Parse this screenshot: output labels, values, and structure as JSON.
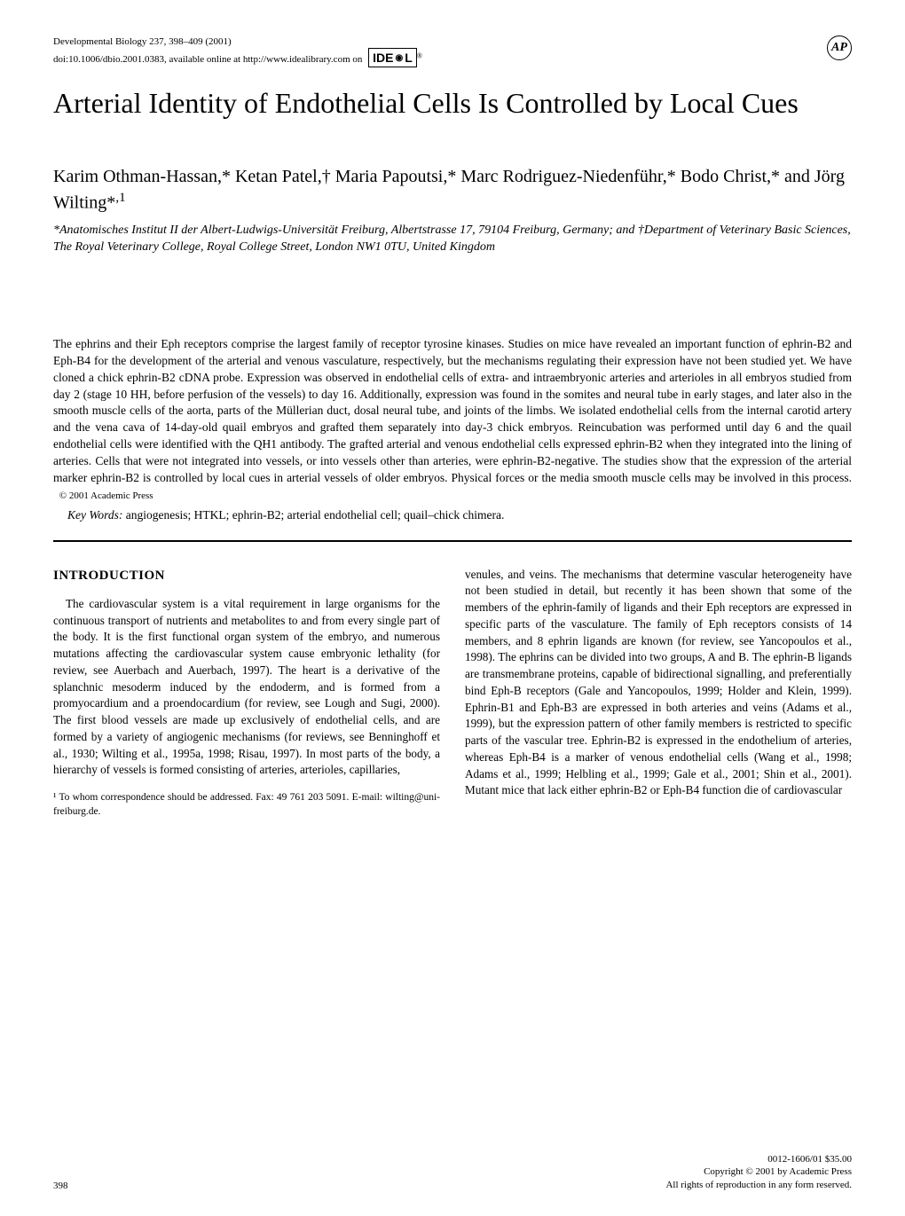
{
  "header": {
    "journal_line": "Developmental Biology 237, 398–409 (2001)",
    "doi_line": "doi:10.1006/dbio.2001.0383, available online at http://www.idealibrary.com on",
    "ideal_logo_text": "IDE",
    "ideal_logo_suffix": "L",
    "ideal_superscript": "®",
    "ap_logo_text": "AP"
  },
  "title": "Arterial Identity of Endothelial Cells Is Controlled by Local Cues",
  "authors_html": "Karim Othman-Hassan,* Ketan Patel,† Maria Papoutsi,* Marc Rodriguez-Niedenführ,* Bodo Christ,* and Jörg Wilting*<sup>,1</sup>",
  "affiliations": "*Anatomisches Institut II der Albert-Ludwigs-Universität Freiburg, Albertstrasse 17, 79104 Freiburg, Germany; and †Department of Veterinary Basic Sciences, The Royal Veterinary College, Royal College Street, London NW1 0TU, United Kingdom",
  "abstract": "The ephrins and their Eph receptors comprise the largest family of receptor tyrosine kinases. Studies on mice have revealed an important function of ephrin-B2 and Eph-B4 for the development of the arterial and venous vasculature, respectively, but the mechanisms regulating their expression have not been studied yet. We have cloned a chick ephrin-B2 cDNA probe. Expression was observed in endothelial cells of extra- and intraembryonic arteries and arterioles in all embryos studied from day 2 (stage 10 HH, before perfusion of the vessels) to day 16. Additionally, expression was found in the somites and neural tube in early stages, and later also in the smooth muscle cells of the aorta, parts of the Müllerian duct, dosal neural tube, and joints of the limbs. We isolated endothelial cells from the internal carotid artery and the vena cava of 14-day-old quail embryos and grafted them separately into day-3 chick embryos. Reincubation was performed until day 6 and the quail endothelial cells were identified with the QH1 antibody. The grafted arterial and venous endothelial cells expressed ephrin-B2 when they integrated into the lining of arteries. Cells that were not integrated into vessels, or into vessels other than arteries, were ephrin-B2-negative. The studies show that the expression of the arterial marker ephrin-B2 is controlled by local cues in arterial vessels of older embryos. Physical forces or the media smooth muscle cells may be involved in this process.",
  "copyright_inline": "© 2001 Academic Press",
  "keywords_label": "Key Words:",
  "keywords": "angiogenesis; HTKL; ephrin-B2; arterial endothelial cell; quail–chick chimera.",
  "section_heading": "INTRODUCTION",
  "col_left_p1": "The cardiovascular system is a vital requirement in large organisms for the continuous transport of nutrients and metabolites to and from every single part of the body. It is the first functional organ system of the embryo, and numerous mutations affecting the cardiovascular system cause embryonic lethality (for review, see Auerbach and Auerbach, 1997). The heart is a derivative of the splanchnic mesoderm induced by the endoderm, and is formed from a promyocardium and a proendocardium (for review, see Lough and Sugi, 2000). The first blood vessels are made up exclusively of endothelial cells, and are formed by a variety of angiogenic mechanisms (for reviews, see Benninghoff et al., 1930; Wilting et al., 1995a, 1998; Risau, 1997). In most parts of the body, a hierarchy of vessels is formed consisting of arteries, arterioles, capillaries,",
  "col_right_p1": "venules, and veins. The mechanisms that determine vascular heterogeneity have not been studied in detail, but recently it has been shown that some of the members of the ephrin-family of ligands and their Eph receptors are expressed in specific parts of the vasculature. The family of Eph receptors consists of 14 members, and 8 ephrin ligands are known (for review, see Yancopoulos et al., 1998). The ephrins can be divided into two groups, A and B. The ephrin-B ligands are transmembrane proteins, capable of bidirectional signalling, and preferentially bind Eph-B receptors (Gale and Yancopoulos, 1999; Holder and Klein, 1999). Ephrin-B1 and Eph-B3 are expressed in both arteries and veins (Adams et al., 1999), but the expression pattern of other family members is restricted to specific parts of the vascular tree. Ephrin-B2 is expressed in the endothelium of arteries, whereas Eph-B4 is a marker of venous endothelial cells (Wang et al., 1998; Adams et al., 1999; Helbling et al., 1999; Gale et al., 2001; Shin et al., 2001). Mutant mice that lack either ephrin-B2 or Eph-B4 function die of cardiovascular",
  "footnote": "¹ To whom correspondence should be addressed. Fax: 49 761 203 5091. E-mail: wilting@uni-freiburg.de.",
  "footer": {
    "page_number": "398",
    "issn": "0012-1606/01 $35.00",
    "copyright": "Copyright © 2001 by Academic Press",
    "rights": "All rights of reproduction in any form reserved."
  }
}
